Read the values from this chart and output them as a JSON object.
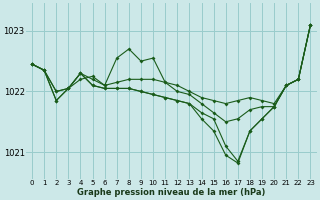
{
  "bg_color": "#cce8e8",
  "grid_color": "#99cccc",
  "line_color": "#1a5c1a",
  "xlabel": "Graphe pression niveau de la mer (hPa)",
  "ylim": [
    1020.55,
    1023.45
  ],
  "xlim": [
    -0.5,
    23.5
  ],
  "yticks": [
    1021,
    1022,
    1023
  ],
  "xticks": [
    0,
    1,
    2,
    3,
    4,
    5,
    6,
    7,
    8,
    9,
    10,
    11,
    12,
    13,
    14,
    15,
    16,
    17,
    18,
    19,
    20,
    21,
    22,
    23
  ],
  "line1_x": [
    0,
    1,
    2,
    3,
    4,
    5,
    6,
    7,
    8,
    9,
    10,
    11,
    12,
    13,
    14,
    15,
    16,
    17,
    18,
    19,
    20,
    21,
    22,
    23
  ],
  "line1_y": [
    1022.45,
    1022.35,
    1022.0,
    1022.05,
    1022.2,
    1022.25,
    1022.1,
    1022.15,
    1022.2,
    1022.2,
    1022.2,
    1022.15,
    1022.1,
    1022.0,
    1021.9,
    1021.85,
    1021.8,
    1021.85,
    1021.9,
    1021.85,
    1021.8,
    1022.1,
    1022.2,
    1023.1
  ],
  "line2_x": [
    0,
    1,
    2,
    3,
    4,
    5,
    6,
    7,
    8,
    9,
    10,
    11,
    12,
    13,
    14,
    15,
    16,
    17,
    18,
    19,
    20,
    21,
    22,
    23
  ],
  "line2_y": [
    1022.45,
    1022.35,
    1022.0,
    1022.05,
    1022.3,
    1022.2,
    1022.1,
    1022.55,
    1022.7,
    1022.5,
    1022.55,
    1022.15,
    1022.0,
    1021.95,
    1021.8,
    1021.65,
    1021.5,
    1021.55,
    1021.7,
    1021.75,
    1021.75,
    1022.1,
    1022.2,
    1023.1
  ],
  "line3_x": [
    0,
    1,
    2,
    3,
    4,
    5,
    6,
    7,
    8,
    9,
    10,
    11,
    12,
    13,
    14,
    15,
    16,
    17,
    18,
    19,
    20,
    21,
    22,
    23
  ],
  "line3_y": [
    1022.45,
    1022.35,
    1021.85,
    1022.05,
    1022.3,
    1022.1,
    1022.05,
    1022.05,
    1022.05,
    1022.0,
    1021.95,
    1021.9,
    1021.85,
    1021.8,
    1021.65,
    1021.55,
    1021.1,
    1020.85,
    1021.35,
    1021.55,
    1021.75,
    1022.1,
    1022.2,
    1023.1
  ],
  "line4_x": [
    0,
    1,
    2,
    3,
    4,
    5,
    6,
    7,
    8,
    9,
    10,
    11,
    12,
    13,
    14,
    15,
    16,
    17,
    18,
    19,
    20,
    21,
    22,
    23
  ],
  "line4_y": [
    1022.45,
    1022.35,
    1021.85,
    1022.05,
    1022.3,
    1022.1,
    1022.05,
    1022.05,
    1022.05,
    1022.0,
    1021.95,
    1021.9,
    1021.85,
    1021.8,
    1021.55,
    1021.35,
    1020.95,
    1020.82,
    1021.35,
    1021.55,
    1021.75,
    1022.1,
    1022.2,
    1023.1
  ]
}
